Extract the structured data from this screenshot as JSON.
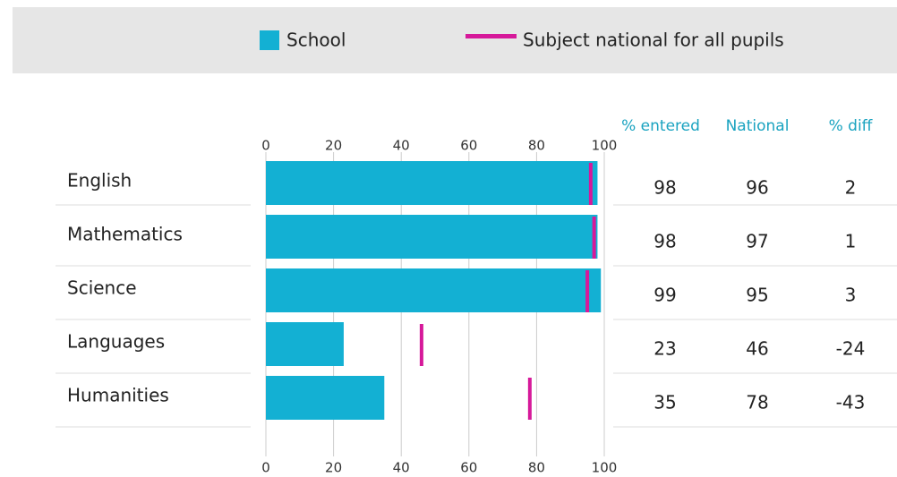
{
  "chart_data": {
    "type": "bar",
    "orientation": "horizontal",
    "categories": [
      "English",
      "Mathematics",
      "Science",
      "Languages",
      "Humanities"
    ],
    "series": [
      {
        "name": "School",
        "color": "#13b0d3",
        "values": [
          98,
          98,
          99,
          23,
          35
        ]
      },
      {
        "name": "Subject national for all pupils",
        "color": "#d6199a",
        "values": [
          96,
          97,
          95,
          46,
          78
        ]
      }
    ],
    "table_headers": [
      "% entered",
      "National",
      "% diff"
    ],
    "diff": [
      2,
      1,
      3,
      -24,
      -43
    ],
    "xlim": [
      0,
      100
    ],
    "xticks": [
      0,
      20,
      40,
      60,
      80,
      100
    ],
    "grid": true
  }
}
